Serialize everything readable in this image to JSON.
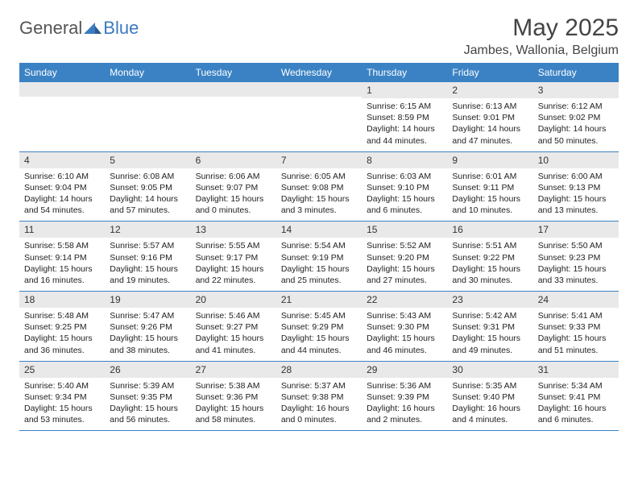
{
  "logo": {
    "word1": "General",
    "word2": "Blue"
  },
  "title": "May 2025",
  "location": "Jambes, Wallonia, Belgium",
  "colors": {
    "header_bg": "#3b82c4",
    "header_text": "#ffffff",
    "daynum_bg": "#e9e9e9",
    "border": "#3b82c4",
    "logo_blue": "#3b7bbf"
  },
  "day_names": [
    "Sunday",
    "Monday",
    "Tuesday",
    "Wednesday",
    "Thursday",
    "Friday",
    "Saturday"
  ],
  "weeks": [
    [
      {
        "n": "",
        "sunrise": "",
        "sunset": "",
        "daylight": ""
      },
      {
        "n": "",
        "sunrise": "",
        "sunset": "",
        "daylight": ""
      },
      {
        "n": "",
        "sunrise": "",
        "sunset": "",
        "daylight": ""
      },
      {
        "n": "",
        "sunrise": "",
        "sunset": "",
        "daylight": ""
      },
      {
        "n": "1",
        "sunrise": "Sunrise: 6:15 AM",
        "sunset": "Sunset: 8:59 PM",
        "daylight": "Daylight: 14 hours and 44 minutes."
      },
      {
        "n": "2",
        "sunrise": "Sunrise: 6:13 AM",
        "sunset": "Sunset: 9:01 PM",
        "daylight": "Daylight: 14 hours and 47 minutes."
      },
      {
        "n": "3",
        "sunrise": "Sunrise: 6:12 AM",
        "sunset": "Sunset: 9:02 PM",
        "daylight": "Daylight: 14 hours and 50 minutes."
      }
    ],
    [
      {
        "n": "4",
        "sunrise": "Sunrise: 6:10 AM",
        "sunset": "Sunset: 9:04 PM",
        "daylight": "Daylight: 14 hours and 54 minutes."
      },
      {
        "n": "5",
        "sunrise": "Sunrise: 6:08 AM",
        "sunset": "Sunset: 9:05 PM",
        "daylight": "Daylight: 14 hours and 57 minutes."
      },
      {
        "n": "6",
        "sunrise": "Sunrise: 6:06 AM",
        "sunset": "Sunset: 9:07 PM",
        "daylight": "Daylight: 15 hours and 0 minutes."
      },
      {
        "n": "7",
        "sunrise": "Sunrise: 6:05 AM",
        "sunset": "Sunset: 9:08 PM",
        "daylight": "Daylight: 15 hours and 3 minutes."
      },
      {
        "n": "8",
        "sunrise": "Sunrise: 6:03 AM",
        "sunset": "Sunset: 9:10 PM",
        "daylight": "Daylight: 15 hours and 6 minutes."
      },
      {
        "n": "9",
        "sunrise": "Sunrise: 6:01 AM",
        "sunset": "Sunset: 9:11 PM",
        "daylight": "Daylight: 15 hours and 10 minutes."
      },
      {
        "n": "10",
        "sunrise": "Sunrise: 6:00 AM",
        "sunset": "Sunset: 9:13 PM",
        "daylight": "Daylight: 15 hours and 13 minutes."
      }
    ],
    [
      {
        "n": "11",
        "sunrise": "Sunrise: 5:58 AM",
        "sunset": "Sunset: 9:14 PM",
        "daylight": "Daylight: 15 hours and 16 minutes."
      },
      {
        "n": "12",
        "sunrise": "Sunrise: 5:57 AM",
        "sunset": "Sunset: 9:16 PM",
        "daylight": "Daylight: 15 hours and 19 minutes."
      },
      {
        "n": "13",
        "sunrise": "Sunrise: 5:55 AM",
        "sunset": "Sunset: 9:17 PM",
        "daylight": "Daylight: 15 hours and 22 minutes."
      },
      {
        "n": "14",
        "sunrise": "Sunrise: 5:54 AM",
        "sunset": "Sunset: 9:19 PM",
        "daylight": "Daylight: 15 hours and 25 minutes."
      },
      {
        "n": "15",
        "sunrise": "Sunrise: 5:52 AM",
        "sunset": "Sunset: 9:20 PM",
        "daylight": "Daylight: 15 hours and 27 minutes."
      },
      {
        "n": "16",
        "sunrise": "Sunrise: 5:51 AM",
        "sunset": "Sunset: 9:22 PM",
        "daylight": "Daylight: 15 hours and 30 minutes."
      },
      {
        "n": "17",
        "sunrise": "Sunrise: 5:50 AM",
        "sunset": "Sunset: 9:23 PM",
        "daylight": "Daylight: 15 hours and 33 minutes."
      }
    ],
    [
      {
        "n": "18",
        "sunrise": "Sunrise: 5:48 AM",
        "sunset": "Sunset: 9:25 PM",
        "daylight": "Daylight: 15 hours and 36 minutes."
      },
      {
        "n": "19",
        "sunrise": "Sunrise: 5:47 AM",
        "sunset": "Sunset: 9:26 PM",
        "daylight": "Daylight: 15 hours and 38 minutes."
      },
      {
        "n": "20",
        "sunrise": "Sunrise: 5:46 AM",
        "sunset": "Sunset: 9:27 PM",
        "daylight": "Daylight: 15 hours and 41 minutes."
      },
      {
        "n": "21",
        "sunrise": "Sunrise: 5:45 AM",
        "sunset": "Sunset: 9:29 PM",
        "daylight": "Daylight: 15 hours and 44 minutes."
      },
      {
        "n": "22",
        "sunrise": "Sunrise: 5:43 AM",
        "sunset": "Sunset: 9:30 PM",
        "daylight": "Daylight: 15 hours and 46 minutes."
      },
      {
        "n": "23",
        "sunrise": "Sunrise: 5:42 AM",
        "sunset": "Sunset: 9:31 PM",
        "daylight": "Daylight: 15 hours and 49 minutes."
      },
      {
        "n": "24",
        "sunrise": "Sunrise: 5:41 AM",
        "sunset": "Sunset: 9:33 PM",
        "daylight": "Daylight: 15 hours and 51 minutes."
      }
    ],
    [
      {
        "n": "25",
        "sunrise": "Sunrise: 5:40 AM",
        "sunset": "Sunset: 9:34 PM",
        "daylight": "Daylight: 15 hours and 53 minutes."
      },
      {
        "n": "26",
        "sunrise": "Sunrise: 5:39 AM",
        "sunset": "Sunset: 9:35 PM",
        "daylight": "Daylight: 15 hours and 56 minutes."
      },
      {
        "n": "27",
        "sunrise": "Sunrise: 5:38 AM",
        "sunset": "Sunset: 9:36 PM",
        "daylight": "Daylight: 15 hours and 58 minutes."
      },
      {
        "n": "28",
        "sunrise": "Sunrise: 5:37 AM",
        "sunset": "Sunset: 9:38 PM",
        "daylight": "Daylight: 16 hours and 0 minutes."
      },
      {
        "n": "29",
        "sunrise": "Sunrise: 5:36 AM",
        "sunset": "Sunset: 9:39 PM",
        "daylight": "Daylight: 16 hours and 2 minutes."
      },
      {
        "n": "30",
        "sunrise": "Sunrise: 5:35 AM",
        "sunset": "Sunset: 9:40 PM",
        "daylight": "Daylight: 16 hours and 4 minutes."
      },
      {
        "n": "31",
        "sunrise": "Sunrise: 5:34 AM",
        "sunset": "Sunset: 9:41 PM",
        "daylight": "Daylight: 16 hours and 6 minutes."
      }
    ]
  ]
}
